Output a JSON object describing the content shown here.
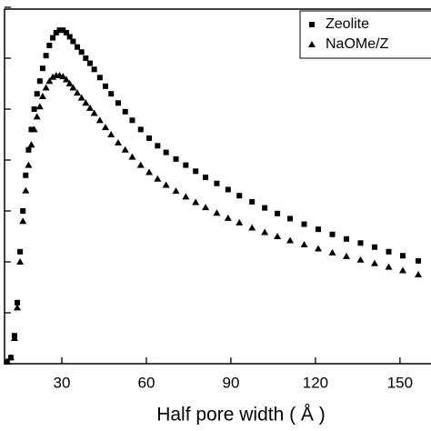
{
  "chart_data": {
    "type": "scatter",
    "xlabel": "Half pore width ( Å )",
    "xlim": [
      10,
      161
    ],
    "xticks": [
      30,
      60,
      90,
      120,
      150
    ],
    "ylim": [
      0,
      7
    ],
    "yticks": [
      0,
      1,
      2,
      3,
      4,
      5,
      6,
      7
    ],
    "legend": "upper right",
    "series": [
      {
        "name": "Zeolite",
        "color": "#000000",
        "marker": "square",
        "x": [
          10.6,
          11.9,
          13.2,
          14.2,
          15.2,
          16.2,
          17.2,
          18.2,
          19.2,
          20.2,
          21.2,
          22.2,
          23.2,
          24.4,
          25.6,
          26.8,
          28,
          29.2,
          30.4,
          31.6,
          32.8,
          34,
          35.5,
          37,
          38.5,
          40,
          41.5,
          43.5,
          45.5,
          47.5,
          50,
          52.5,
          55,
          58,
          61,
          64,
          67,
          70.5,
          74,
          77.5,
          81,
          85,
          89,
          93,
          97.5,
          102,
          106.5,
          111,
          116,
          121,
          126,
          131,
          136,
          141,
          146,
          151,
          156.5
        ],
        "values": [
          0.04,
          0.12,
          0.55,
          1.2,
          2.2,
          3.0,
          3.7,
          4.2,
          4.6,
          5.0,
          5.3,
          5.55,
          5.8,
          6.05,
          6.25,
          6.4,
          6.5,
          6.55,
          6.55,
          6.5,
          6.42,
          6.33,
          6.22,
          6.12,
          6.0,
          5.9,
          5.78,
          5.62,
          5.45,
          5.3,
          5.12,
          4.95,
          4.78,
          4.6,
          4.43,
          4.28,
          4.15,
          4.02,
          3.9,
          3.78,
          3.66,
          3.54,
          3.42,
          3.3,
          3.18,
          3.06,
          2.95,
          2.85,
          2.74,
          2.64,
          2.54,
          2.45,
          2.37,
          2.29,
          2.2,
          2.12,
          2.02
        ]
      },
      {
        "name": "NaOMe/Z",
        "color": "#000000",
        "marker": "triangle",
        "x": [
          10.6,
          11.9,
          13.2,
          14.2,
          15.2,
          16.2,
          17.2,
          18.2,
          19.2,
          20.2,
          21.2,
          22.2,
          23.2,
          24.4,
          25.6,
          26.8,
          28,
          29.2,
          30.4,
          31.6,
          32.8,
          34,
          35.5,
          37,
          38.5,
          40,
          41.5,
          43.5,
          45.5,
          47.5,
          50,
          52.5,
          55,
          58,
          61,
          64,
          67,
          70.5,
          74,
          77.5,
          81,
          85,
          89,
          93,
          97.5,
          102,
          106.5,
          111,
          116,
          121,
          126,
          131,
          136,
          141,
          146,
          151,
          156.5
        ],
        "values": [
          0.04,
          0.12,
          0.5,
          1.1,
          2.0,
          2.8,
          3.4,
          3.9,
          4.3,
          4.6,
          4.85,
          5.05,
          5.25,
          5.42,
          5.55,
          5.63,
          5.66,
          5.66,
          5.64,
          5.58,
          5.5,
          5.42,
          5.32,
          5.22,
          5.12,
          5.02,
          4.92,
          4.78,
          4.64,
          4.5,
          4.34,
          4.2,
          4.06,
          3.9,
          3.76,
          3.63,
          3.51,
          3.39,
          3.28,
          3.17,
          3.07,
          2.96,
          2.86,
          2.77,
          2.67,
          2.58,
          2.5,
          2.42,
          2.34,
          2.26,
          2.18,
          2.11,
          2.04,
          1.97,
          1.9,
          1.83,
          1.75
        ]
      }
    ]
  }
}
